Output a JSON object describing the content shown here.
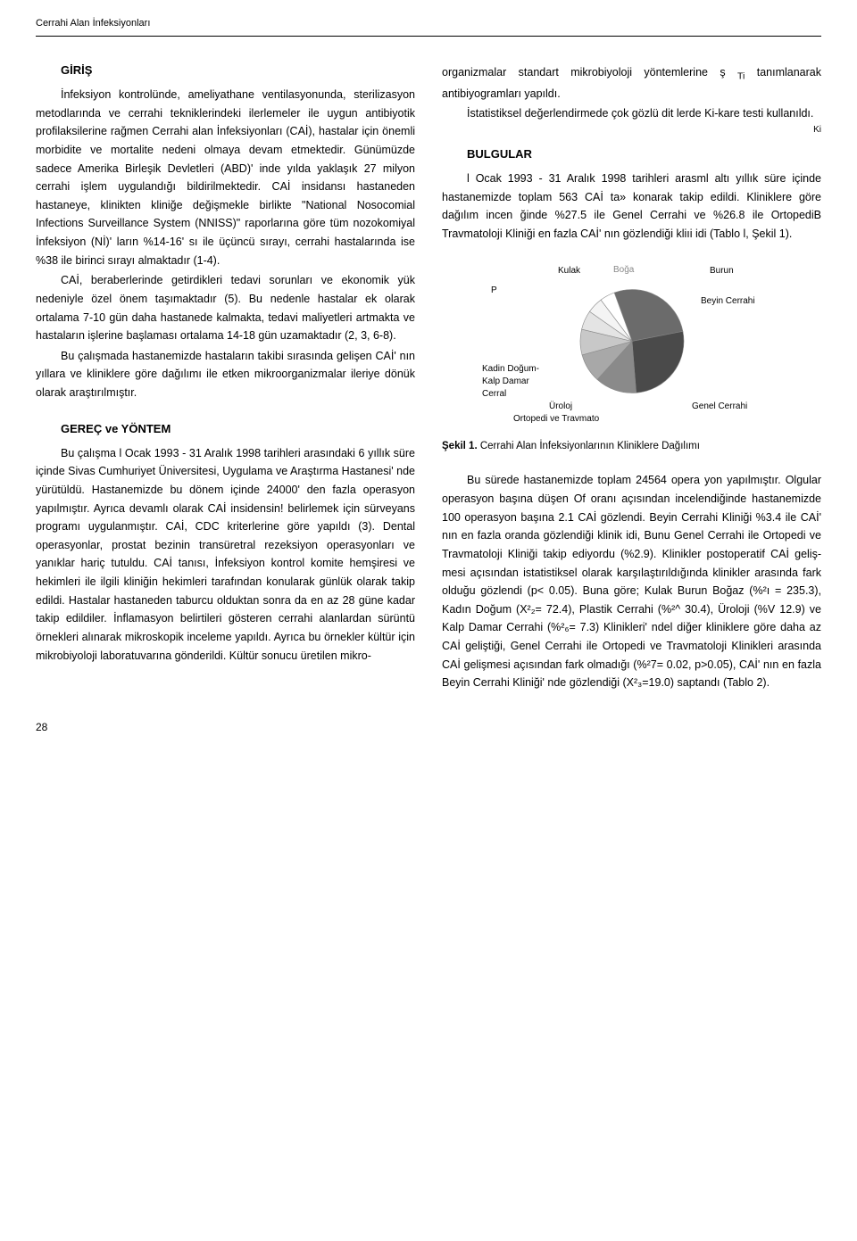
{
  "header": {
    "running_title": "Cerrahi Alan İnfeksiyonları"
  },
  "left": {
    "h_giris": "GİRİŞ",
    "p1": "İnfeksiyon kontrolünde, ameliyathane ventilasyonunda, sterilizasyon metodlarında ve cerrahi tekniklerindeki ilerlemeler ile uygun antibiyotik profilaksilerine rağmen Cerrahi alan İnfeksiyonları (CAİ), hastalar için önemli morbidite ve mortalite nedeni olma­ya devam etmektedir. Günümüzde sadece Amerika Birleşik Devletleri (ABD)' inde yılda yaklaşık 27 milyon cerrahi işlem uygulandığı bildirilmektedir. CAİ insidansı hastaneden hastaneye, klinikten kliniğe değişmekle birlikte \"National Nosocomial Infections Surveillance System (NNISS)\" raporlarına göre tüm nozokomiyal İnfeksiyon (Nİ)' ların %14-16' sı ile üçüncü sırayı, cerrahi hastalarında ise %38 ile birinci sırayı almaktadır (1-4).",
    "p2": "CAİ, beraberlerinde getirdikleri tedavi sorunları ve ekonomik yük nedeniyle özel önem taşımaktadır (5). Bu nedenle hastalar ek olarak ortalama 7-10 gün daha hastanede kalmakta, tedavi maliyetleri artmakta ve hastaların işlerine başlaması ortalama 14-18 gün uza­maktadır (2, 3, 6-8).",
    "p3": "Bu çalışmada hastanemizde hastaların takibi sı­rasında gelişen CAİ' nın yıllara ve kliniklere göre dağılımı ile etken mikroorganizmalar ileriye dönük olarak araştı­rılmıştır.",
    "h_gerec": "GEREÇ ve YÖNTEM",
    "p4": "Bu çalışma l Ocak 1993 - 31 Aralık 1998 tarih­leri arasındaki 6 yıllık süre içinde Sivas Cumhuriyet Üni­versitesi, Uygulama ve Araştırma Hastanesi' nde yü­rütüldü. Hastanemizde bu dönem içinde 24000' den fazla operasyon yapılmıştır. Ayrıca devamlı olarak CAİ insidensin! belirlemek için sürveyans programı uygulan­mıştır. CAİ, CDC kriterlerine göre yapıldı (3). Dental operasyonlar, prostat bezinin transüretral rezeksiyon operasyonları ve yanıklar hariç tutuldu. CAİ tanısı, İnfeksiyon kontrol komite hemşiresi ve hekimleri ile ilgili kliniğin hekimleri tarafından konularak günlük olarak takip edildi. Hastalar hastaneden taburcu olduktan sonra da en az 28 güne kadar takip edildiler. İnflamasyon belirtileri gösteren cerrahi alanlardan sürüntü örnekleri alınarak mikroskopik inceleme yapıldı. Ayrıca bu örnekler kültür için mikrobiyoloji laboratuvarına gönderildi. Kültür sonucu üretilen mikro-"
  },
  "right": {
    "p1a": "organizmalar standart mikrobiyoloji yöntemlerine ş ",
    "p1_sub": "Ti",
    "p1b": " tanımlanarak antibiyogramları yapıldı.",
    "p2": "İstatistiksel değerlendirmede çok gözlü dit lerde Ki-kare testi kullanıldı.",
    "ki_mark": "Ki",
    "h_bulgular": "BULGULAR",
    "p3": "l Ocak 1993 - 31 Aralık 1998 tarihleri arasml altı yıllık süre içinde hastanemizde toplam 563 CAİ ta» konarak takip edildi. Kliniklere göre dağılım incen ğinde %27.5 ile Genel Cerrahi ve %26.8 ile OrtopediB Travmatoloji Kliniği en fazla CAİ' nın gözlendiği kliıi idi (Tablo l, Şekil 1).",
    "chart": {
      "type": "pie",
      "labels": {
        "kulak": "Kulak",
        "burun": "Burun",
        "p": "P",
        "beyin": "Beyin Cerrahi",
        "kadin": "Kadin Doğum-",
        "kalp": "Kalp Damar",
        "cerral": "Cerral",
        "uroloj": "Üroloj",
        "ortopedi": "Ortopedi ve Travmato",
        "genel": "Genel Cerrahi",
        "boga_faint": "Boğa"
      },
      "slices": [
        {
          "value": 27.5,
          "color": "#6b6b6b"
        },
        {
          "value": 26.8,
          "color": "#4a4a4a"
        },
        {
          "value": 13.0,
          "color": "#8a8a8a"
        },
        {
          "value": 9.0,
          "color": "#a8a8a8"
        },
        {
          "value": 8.0,
          "color": "#c8c8c8"
        },
        {
          "value": 6.0,
          "color": "#e4e4e4"
        },
        {
          "value": 5.0,
          "color": "#f4f4f4"
        },
        {
          "value": 4.7,
          "color": "#ffffff"
        }
      ],
      "radius": 58,
      "stroke": "#888888",
      "background_color": "#ffffff"
    },
    "fig_caption_b": "Şekil 1.",
    "fig_caption_t": " Cerrahi Alan İnfeksiyonlarının Kliniklere Dağılımı",
    "p4": "Bu sürede hastanemizde toplam 24564 opera yon yapılmıştır. Olgular operasyon başına düşen Of oranı açısından incelendiğinde hastanemizde 100 ope­rasyon başına 2.1 CAİ gözlendi. Beyin Cerrahi Kliniği %3.4  ile CAİ' nın en fazla oranda gözlendiği klinik idi, Bunu Genel Cerrahi ile Ortopedi ve Travmatoloji Kliniği takip ediyordu (%2.9). Klinikler postoperatif CAİ geliş­mesi açısından  istatistiksel olarak karşılaştırıldığında klinikler arasında fark olduğu gözlendi (p< 0.05). Buna göre; Kulak Burun Boğaz (%²ı = 235.3), Kadın Doğum (X²₂= 72.4), Plastik Cerrahi (%²^ 30.4), Üroloji (%V 12.9) ve Kalp Damar Cerrahi (%²₆= 7.3) Klinikleri' ndel diğer kliniklere göre daha az CAİ geliştiği, Genel Cerrahi ile Ortopedi ve Travmatoloji Klinikleri arasında CAİ ge­lişmesi açısından fark olmadığı (%²7= 0.02, p>0.05), CAİ' nın en fazla Beyin Cerrahi Kliniği' nde gözlendiği (X²₃=19.0) saptandı (Tablo 2)."
  },
  "page_number": "28"
}
